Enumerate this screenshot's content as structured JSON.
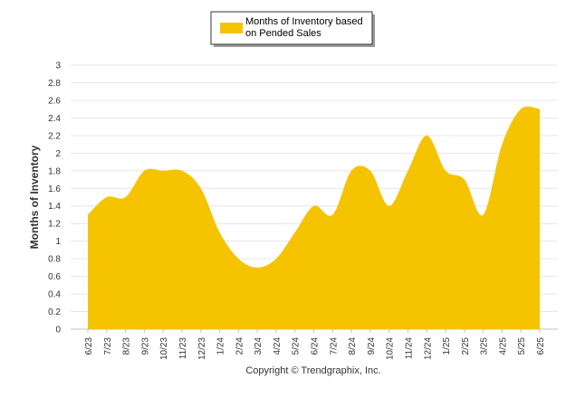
{
  "chart_data": {
    "type": "area",
    "categories": [
      "6/23",
      "7/23",
      "8/23",
      "9/23",
      "10/23",
      "11/23",
      "12/23",
      "1/24",
      "2/24",
      "3/24",
      "4/24",
      "5/24",
      "6/24",
      "7/24",
      "8/24",
      "9/24",
      "10/24",
      "11/24",
      "12/24",
      "1/25",
      "2/25",
      "3/25",
      "4/25",
      "5/25",
      "6/25"
    ],
    "series": [
      {
        "name": "Months of Inventory based on Pended Sales",
        "color": "#F5C300",
        "values": [
          1.3,
          1.5,
          1.5,
          1.8,
          1.8,
          1.8,
          1.6,
          1.1,
          0.8,
          0.7,
          0.8,
          1.1,
          1.4,
          1.3,
          1.8,
          1.8,
          1.4,
          1.8,
          2.2,
          1.8,
          1.7,
          1.3,
          2.1,
          2.5,
          2.5
        ]
      }
    ],
    "title": "",
    "xlabel": "",
    "ylabel": "Months of Inventory",
    "ylim": [
      0,
      3
    ],
    "yticks": [
      "0",
      "0.2",
      "0.4",
      "0.6",
      "0.8",
      "1",
      "1.2",
      "1.4",
      "1.6",
      "1.8",
      "2",
      "2.2",
      "2.4",
      "2.6",
      "2.8",
      "3"
    ],
    "grid": true,
    "legend_position": "top-center"
  },
  "legend": {
    "label_line1": "Months of Inventory based",
    "label_line2": "on Pended Sales"
  },
  "footer": {
    "copyright": "Copyright © Trendgraphix, Inc."
  }
}
